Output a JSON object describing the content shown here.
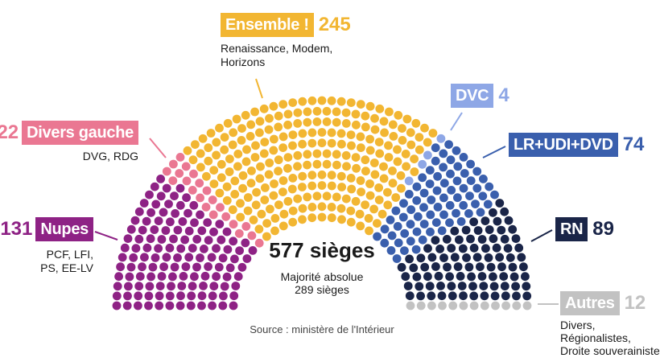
{
  "chart_data": {
    "type": "parliament",
    "total_label": "577 sièges",
    "majority_label": "Majorité absolue",
    "majority_seats": "289 sièges",
    "source": "Source : ministère de l'Intérieur",
    "groups": [
      {
        "id": "nupes",
        "name": "Nupes",
        "seats": 131,
        "seats_label": "131",
        "color": "#8e2285",
        "detail": [
          "PCF,  LFI,",
          "PS, EE-LV"
        ]
      },
      {
        "id": "dvg",
        "name": "Divers gauche",
        "seats": 22,
        "seats_label": "22",
        "color": "#ea7792",
        "detail": [
          "DVG, RDG"
        ]
      },
      {
        "id": "ensemble",
        "name": "Ensemble !",
        "seats": 245,
        "seats_label": "245",
        "color": "#f2b632",
        "detail": [
          "Renaissance, Modem,",
          "Horizons"
        ]
      },
      {
        "id": "dvc",
        "name": "DVC",
        "seats": 4,
        "seats_label": "4",
        "color": "#8ea7e6",
        "detail": []
      },
      {
        "id": "lr",
        "name": "LR+UDI+DVD",
        "seats": 74,
        "seats_label": "74",
        "color": "#3a5fad",
        "detail": []
      },
      {
        "id": "rn",
        "name": "RN",
        "seats": 89,
        "seats_label": "89",
        "color": "#1a2548",
        "detail": []
      },
      {
        "id": "autres",
        "name": "Autres",
        "seats": 12,
        "seats_label": "12",
        "color": "#c2c2c2",
        "detail": [
          "Divers,",
          "Régionalistes,",
          "Droite souverainiste"
        ]
      }
    ]
  }
}
